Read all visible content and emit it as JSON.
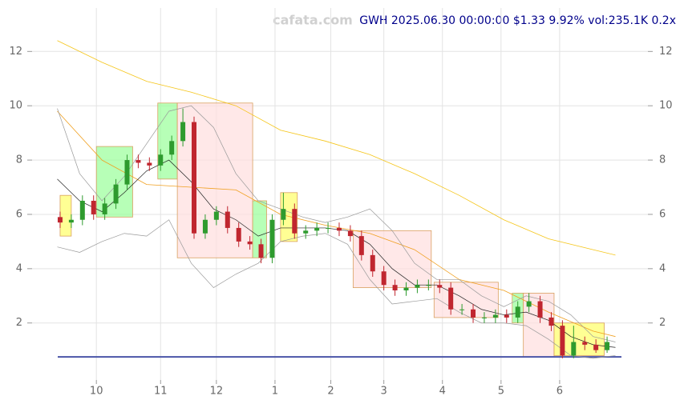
{
  "chart_data": {
    "type": "candlestick",
    "title": "GWH 2025.06.30 00:00:00 $1.33 9.92% vol:235.1K 0.2x",
    "watermark": "cafata.com",
    "xlim": [
      -15,
      187
    ],
    "ylim": [
      -0.1,
      13.6
    ],
    "xticks": [
      {
        "value": 0,
        "label": "10"
      },
      {
        "value": 23,
        "label": "11"
      },
      {
        "value": 43,
        "label": "12"
      },
      {
        "value": 64,
        "label": "1"
      },
      {
        "value": 84,
        "label": "2"
      },
      {
        "value": 103,
        "label": "3"
      },
      {
        "value": 124,
        "label": "4"
      },
      {
        "value": 145,
        "label": "5"
      },
      {
        "value": 166,
        "label": "6"
      }
    ],
    "yticks": [
      2,
      4,
      6,
      8,
      10,
      12
    ],
    "grid": true,
    "up_color": "#2e9b2e",
    "down_color": "#c0262f",
    "x": [
      -13,
      -9,
      -5,
      -1,
      3,
      7,
      11,
      15,
      19,
      23,
      27,
      31,
      35,
      39,
      43,
      47,
      51,
      55,
      59,
      63,
      67,
      71,
      75,
      79,
      83,
      87,
      91,
      95,
      99,
      103,
      107,
      111,
      115,
      119,
      123,
      127,
      131,
      135,
      139,
      143,
      147,
      151,
      155,
      159,
      163,
      167,
      171,
      175,
      179,
      183
    ],
    "open": [
      5.9,
      5.7,
      5.8,
      6.5,
      6.0,
      6.4,
      7.1,
      8.0,
      7.9,
      7.8,
      8.2,
      8.7,
      9.4,
      5.3,
      5.8,
      6.1,
      5.5,
      5.0,
      4.9,
      4.4,
      5.8,
      6.2,
      5.3,
      5.4,
      5.5,
      5.5,
      5.4,
      5.2,
      4.5,
      3.9,
      3.4,
      3.2,
      3.3,
      3.4,
      3.4,
      3.3,
      2.5,
      2.5,
      2.2,
      2.2,
      2.3,
      2.2,
      2.6,
      2.8,
      2.2,
      1.9,
      0.8,
      1.3,
      1.2,
      1.0
    ],
    "high": [
      6.1,
      6.0,
      6.7,
      6.7,
      6.6,
      7.3,
      8.2,
      8.2,
      8.1,
      8.4,
      8.9,
      9.9,
      9.6,
      6.0,
      6.3,
      6.3,
      5.7,
      5.2,
      5.1,
      6.0,
      6.8,
      6.4,
      5.6,
      5.7,
      5.7,
      5.7,
      5.6,
      5.4,
      4.7,
      4.1,
      3.6,
      3.5,
      3.6,
      3.6,
      3.6,
      3.5,
      2.7,
      2.7,
      2.4,
      2.5,
      2.5,
      2.8,
      3.1,
      3.0,
      2.4,
      2.1,
      1.9,
      1.5,
      1.4,
      1.5
    ],
    "low": [
      5.5,
      5.5,
      5.6,
      5.8,
      5.8,
      6.2,
      6.9,
      7.7,
      7.6,
      7.6,
      8.0,
      8.5,
      5.1,
      5.1,
      5.6,
      5.3,
      4.8,
      4.7,
      4.2,
      4.2,
      5.6,
      5.1,
      5.1,
      5.2,
      5.3,
      5.2,
      5.0,
      4.3,
      3.7,
      3.2,
      3.0,
      3.0,
      3.1,
      3.2,
      3.1,
      2.3,
      2.3,
      2.0,
      2.0,
      2.0,
      2.0,
      2.0,
      2.4,
      2.0,
      1.7,
      0.7,
      0.7,
      1.0,
      0.9,
      0.9
    ],
    "close": [
      5.7,
      5.8,
      6.5,
      6.0,
      6.4,
      7.1,
      8.0,
      7.9,
      7.8,
      8.2,
      8.7,
      9.4,
      5.3,
      5.8,
      6.1,
      5.5,
      5.0,
      4.9,
      4.4,
      5.8,
      6.2,
      5.3,
      5.4,
      5.5,
      5.5,
      5.4,
      5.2,
      4.5,
      3.9,
      3.4,
      3.2,
      3.3,
      3.4,
      3.4,
      3.3,
      2.5,
      2.5,
      2.2,
      2.2,
      2.3,
      2.2,
      2.6,
      2.8,
      2.2,
      1.9,
      0.8,
      1.3,
      1.2,
      1.0,
      1.3
    ],
    "lines": [
      {
        "color": "#f5c518",
        "width": 0.8,
        "x": [
          -14,
          2,
          18,
          34,
          50,
          66,
          82,
          98,
          114,
          130,
          146,
          162,
          178,
          186
        ],
        "values": [
          12.4,
          11.6,
          10.9,
          10.5,
          10.0,
          9.1,
          8.7,
          8.2,
          7.5,
          6.7,
          5.8,
          5.1,
          4.7,
          4.5
        ]
      },
      {
        "color": "#f0a020",
        "width": 0.8,
        "x": [
          -14,
          2,
          18,
          34,
          50,
          66,
          82,
          98,
          114,
          130,
          146,
          162,
          178,
          186
        ],
        "values": [
          9.8,
          8.0,
          7.1,
          7.0,
          6.9,
          6.0,
          5.6,
          5.3,
          4.7,
          3.6,
          3.2,
          2.4,
          1.7,
          1.5
        ]
      },
      {
        "color": "#222222",
        "width": 0.7,
        "x": [
          -14,
          -6,
          2,
          10,
          18,
          26,
          34,
          42,
          50,
          58,
          66,
          74,
          82,
          90,
          98,
          106,
          114,
          122,
          130,
          138,
          146,
          154,
          162,
          170,
          178,
          186
        ],
        "values": [
          7.3,
          6.5,
          6.1,
          6.8,
          7.6,
          8.0,
          7.2,
          6.2,
          5.8,
          5.2,
          5.5,
          5.5,
          5.5,
          5.4,
          4.9,
          4.0,
          3.4,
          3.4,
          3.0,
          2.5,
          2.3,
          2.4,
          2.1,
          1.5,
          1.2,
          1.1
        ]
      },
      {
        "color": "#999999",
        "width": 0.7,
        "x": [
          -14,
          -6,
          2,
          10,
          18,
          26,
          34,
          42,
          50,
          58,
          66,
          74,
          82,
          90,
          98,
          106,
          114,
          122,
          130,
          138,
          146,
          154,
          162,
          170,
          178,
          186
        ],
        "values": [
          9.9,
          7.5,
          6.5,
          7.4,
          8.6,
          9.8,
          10.0,
          9.2,
          7.5,
          6.5,
          6.2,
          5.9,
          5.7,
          5.9,
          6.2,
          5.4,
          4.2,
          3.6,
          3.6,
          3.0,
          2.6,
          3.0,
          2.8,
          2.3,
          1.5,
          1.3
        ]
      },
      {
        "color": "#999999",
        "width": 0.7,
        "x": [
          -14,
          -6,
          2,
          10,
          18,
          26,
          34,
          42,
          50,
          58,
          66,
          74,
          82,
          90,
          98,
          106,
          114,
          122,
          130,
          138,
          146,
          154,
          162,
          170,
          178,
          186
        ],
        "values": [
          4.8,
          4.6,
          5.0,
          5.3,
          5.2,
          5.8,
          4.2,
          3.3,
          3.8,
          4.2,
          5.0,
          5.2,
          5.3,
          4.9,
          3.6,
          2.7,
          2.8,
          2.9,
          2.4,
          2.0,
          2.0,
          1.9,
          1.4,
          0.8,
          0.7,
          0.8
        ]
      }
    ],
    "zones": [
      {
        "x": [
          -13,
          -9
        ],
        "y": [
          5.2,
          6.7
        ],
        "color": "#ffff66"
      },
      {
        "x": [
          0,
          13
        ],
        "y": [
          5.9,
          8.5
        ],
        "color": "#99ff99"
      },
      {
        "x": [
          22,
          29
        ],
        "y": [
          7.3,
          10.1
        ],
        "color": "#99ff99"
      },
      {
        "x": [
          29,
          56
        ],
        "y": [
          4.4,
          10.1
        ],
        "color": "#ffdede"
      },
      {
        "x": [
          56,
          61
        ],
        "y": [
          4.4,
          6.5
        ],
        "color": "#99ff99"
      },
      {
        "x": [
          66,
          72
        ],
        "y": [
          5.0,
          6.8
        ],
        "color": "#ffff66"
      },
      {
        "x": [
          92,
          120
        ],
        "y": [
          3.3,
          5.4
        ],
        "color": "#ffdede"
      },
      {
        "x": [
          121,
          144
        ],
        "y": [
          2.2,
          3.5
        ],
        "color": "#ffdede"
      },
      {
        "x": [
          149,
          153
        ],
        "y": [
          2.0,
          3.1
        ],
        "color": "#99ff99"
      },
      {
        "x": [
          153,
          164
        ],
        "y": [
          0.75,
          3.1
        ],
        "color": "#ffdede"
      },
      {
        "x": [
          164,
          182
        ],
        "y": [
          0.8,
          2.0
        ],
        "color": "#ffff66"
      }
    ],
    "hlines": [
      {
        "value": 0.75,
        "color": "#4a55a8"
      }
    ]
  }
}
